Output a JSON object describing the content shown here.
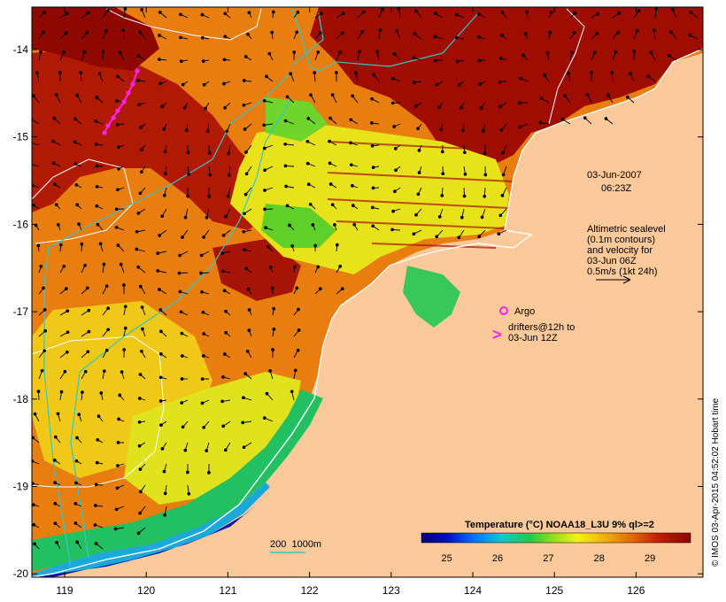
{
  "map": {
    "date_label": "03-Jun-2007",
    "time_label": "06:23Z",
    "altimetry_note": [
      "Altimetric sealevel",
      "(0.1m contours)",
      "and velocity for",
      "03-Jun 06Z",
      "0.5m/s (1kt 24h)"
    ],
    "argo_label": "Argo",
    "drifters_label_1": "drifters@12h to",
    "drifters_label_2": "03-Jun 12Z",
    "depth_legend": "200  1000m",
    "credit": "© IMOS 03-Apr-2015 04:52:02 Hobart time",
    "colorbar_title": "Temperature (°C) NOAA18_L3U 9% ql>=2",
    "colorbar_ticks": [
      "25",
      "26",
      "27",
      "28",
      "29"
    ],
    "lon_ticks": [
      "119",
      "120",
      "121",
      "122",
      "123",
      "124",
      "125",
      "126"
    ],
    "lat_ticks": [
      "-14",
      "-15",
      "-16",
      "-17",
      "-18",
      "-19",
      "-20"
    ],
    "colors": {
      "land": "#fcc99a",
      "warm": "#9e0d00",
      "contour_sealevel": "#ffffff",
      "isobath": "#35c7c0",
      "drifter": "#ff22ee",
      "coast": "#ffffff"
    },
    "colorbar_range_c": [
      24.5,
      29.8
    ]
  }
}
